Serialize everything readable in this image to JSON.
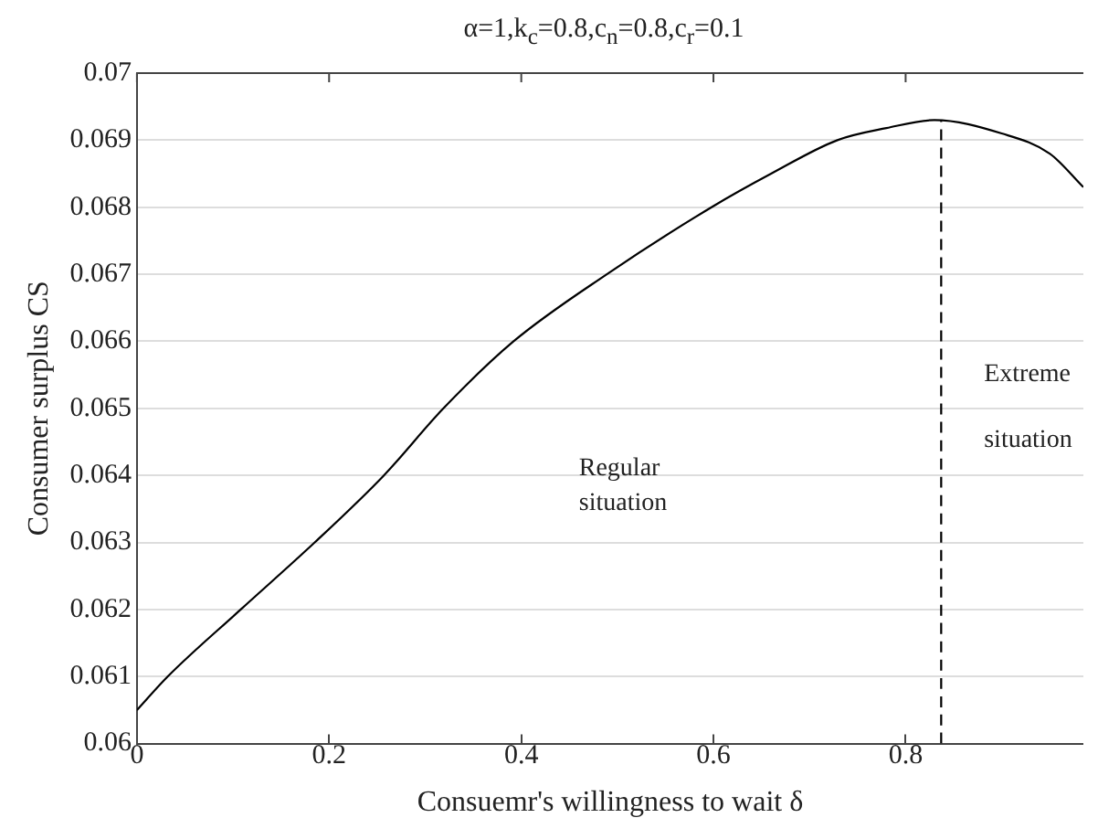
{
  "chart_data": {
    "type": "line",
    "title": "α=1,k$_{c}$=0.8,c$_{n}$=0.8,c$_{r}$=0.1",
    "xlabel": "Consuemr's willingness to wait δ",
    "ylabel": "Consumer surplus CS",
    "x": [
      0,
      0.032,
      0.108,
      0.185,
      0.257,
      0.319,
      0.392,
      0.489,
      0.598,
      0.66,
      0.729,
      0.78,
      0.83,
      0.9,
      0.95,
      0.985
    ],
    "series": [
      {
        "color": "#000000",
        "values": [
          0.0605,
          0.061,
          0.062,
          0.063,
          0.064,
          0.065,
          0.066,
          0.067,
          0.068,
          0.0685,
          0.069,
          0.06918,
          0.0693,
          0.0691,
          0.0688,
          0.0683
        ]
      },
      {
        "type": "line",
        "color": "#000000",
        "line_style": "dashed",
        "x": [
          0.837,
          0.837
        ],
        "values": [
          0.06,
          0.0693
        ]
      }
    ],
    "xlim": [
      0,
      0.985
    ],
    "xticks": [
      0,
      0.2,
      0.4,
      0.6,
      0.8
    ],
    "ylim": [
      0.06,
      0.07
    ],
    "yticks": [
      0.06,
      0.061,
      0.062,
      0.063,
      0.064,
      0.065,
      0.066,
      0.067,
      0.068,
      0.069,
      0.07
    ],
    "grid": "y",
    "legend": false,
    "marker": "none",
    "line_style": "solid",
    "annotations": [
      "Regular situation",
      "Extreme situation"
    ]
  }
}
